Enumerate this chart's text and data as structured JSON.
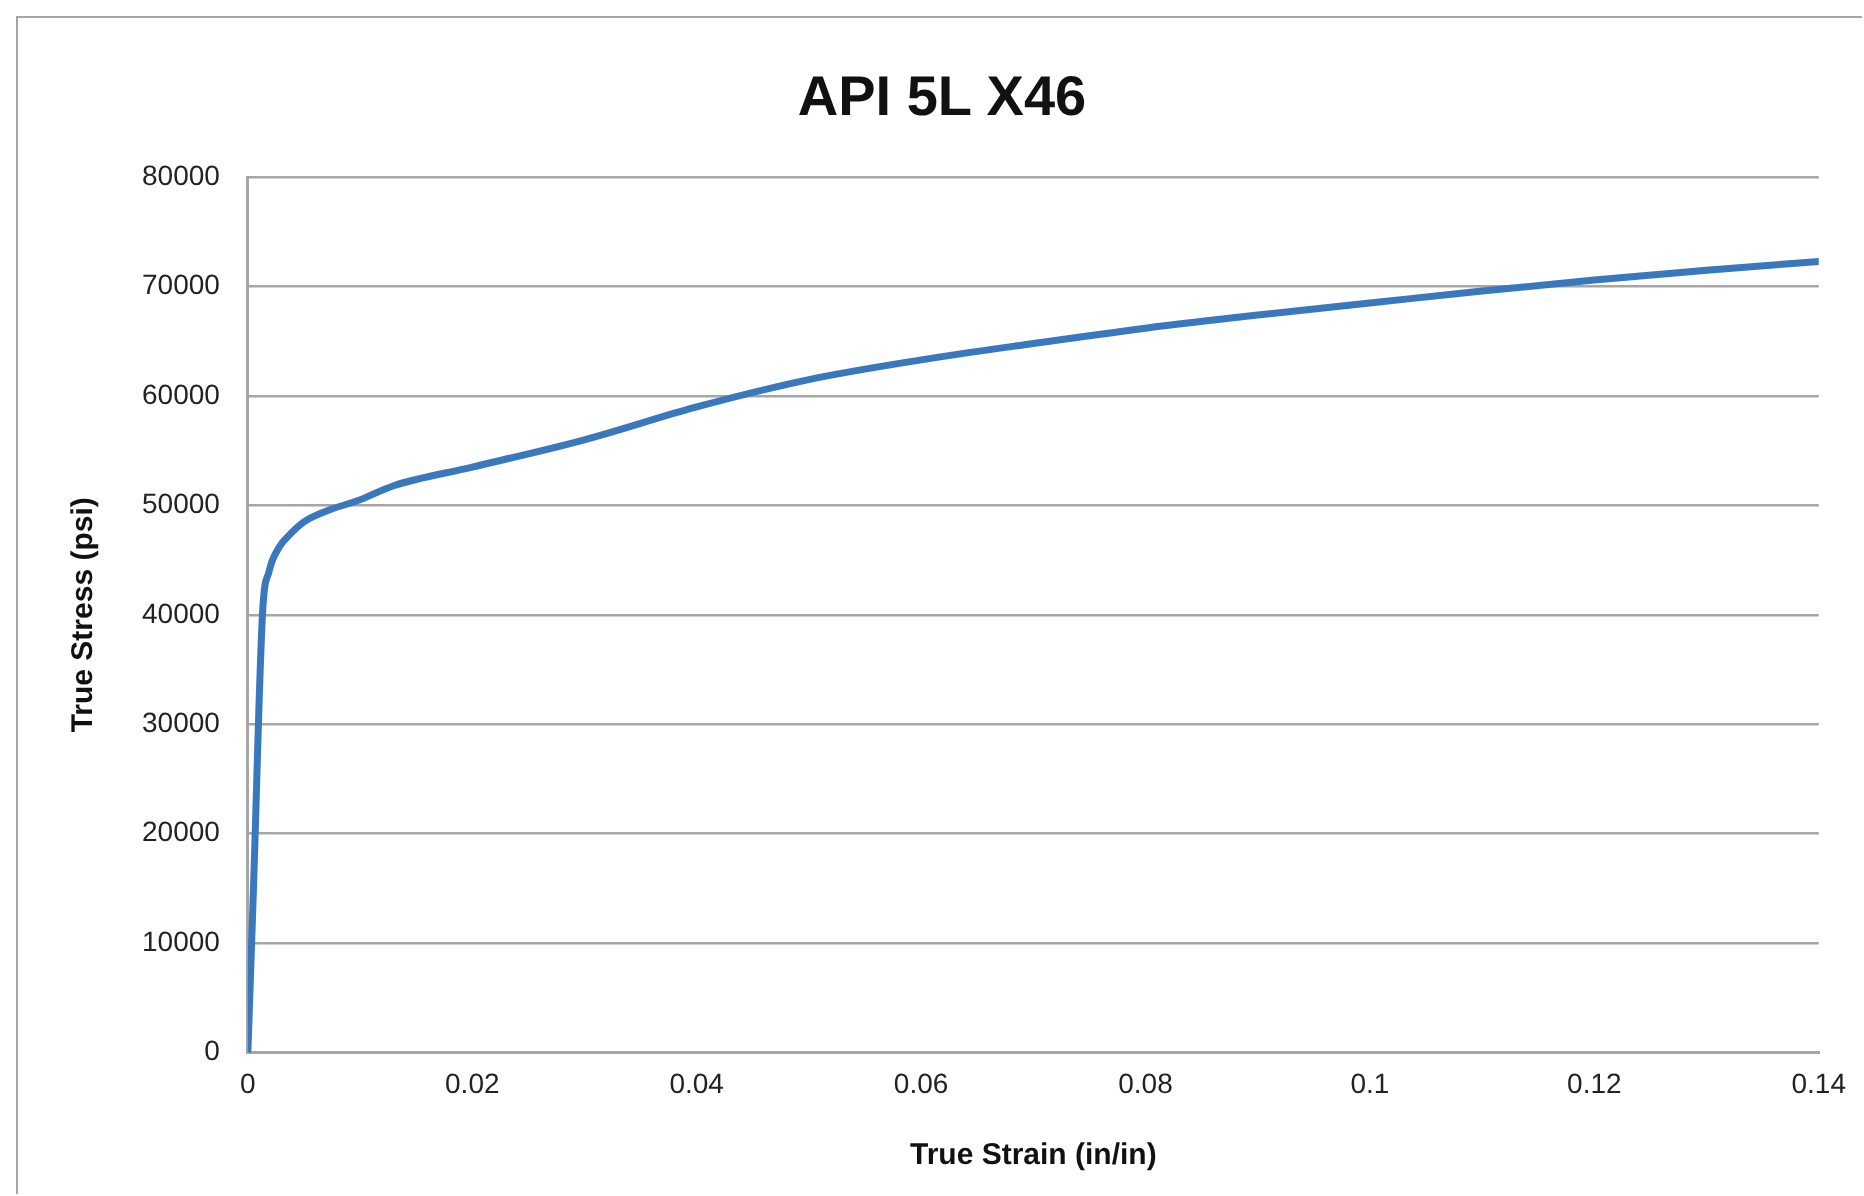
{
  "chart_data": {
    "type": "line",
    "title": "API 5L X46",
    "xlabel": "True Strain (in/in)",
    "ylabel": "True Stress (psi)",
    "x": [
      0,
      0.0005,
      0.0013,
      0.0019,
      0.0028,
      0.0037,
      0.005,
      0.0073,
      0.0097,
      0.013,
      0.02,
      0.03,
      0.04,
      0.05,
      0.06,
      0.07,
      0.08,
      0.09,
      0.1,
      0.11,
      0.12,
      0.13,
      0.14
    ],
    "series": [
      {
        "color": "#3a78bd",
        "values": [
          0,
          15000,
          40000,
          44000,
          46200,
          47300,
          48500,
          49600,
          50400,
          51800,
          53500,
          56000,
          59000,
          61500,
          63300,
          64800,
          66200,
          67400,
          68500,
          69600,
          70600,
          71500,
          72300
        ]
      }
    ],
    "xlim": [
      0,
      0.14
    ],
    "xticks": [
      0,
      0.02,
      0.04,
      0.06,
      0.08,
      0.1,
      0.12,
      0.14
    ],
    "ylim": [
      0,
      80000
    ],
    "yticks": [
      0,
      10000,
      20000,
      30000,
      40000,
      50000,
      60000,
      70000,
      80000
    ],
    "grid": "y",
    "legend": false,
    "marker": "none",
    "line_style": "solid"
  }
}
